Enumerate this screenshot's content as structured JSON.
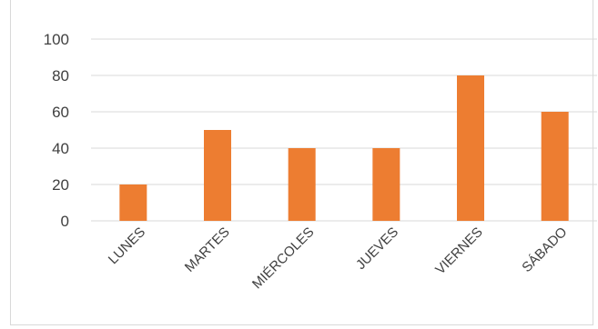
{
  "chart_data": {
    "type": "bar",
    "title": "",
    "categories": [
      "LUNES",
      "MARTES",
      "MIÉRCOLES",
      "JUEVES",
      "VIERNES",
      "SÁBADO"
    ],
    "values": [
      20,
      50,
      40,
      40,
      80,
      60
    ],
    "ylim": [
      0,
      100
    ],
    "yticks": [
      0,
      20,
      40,
      60,
      80,
      100
    ],
    "xlabel": "",
    "ylabel": "",
    "grid": true,
    "legend": "none",
    "bar_color": "#ed7d31",
    "grid_color": "#d9d9d9",
    "text_color": "#404040"
  }
}
